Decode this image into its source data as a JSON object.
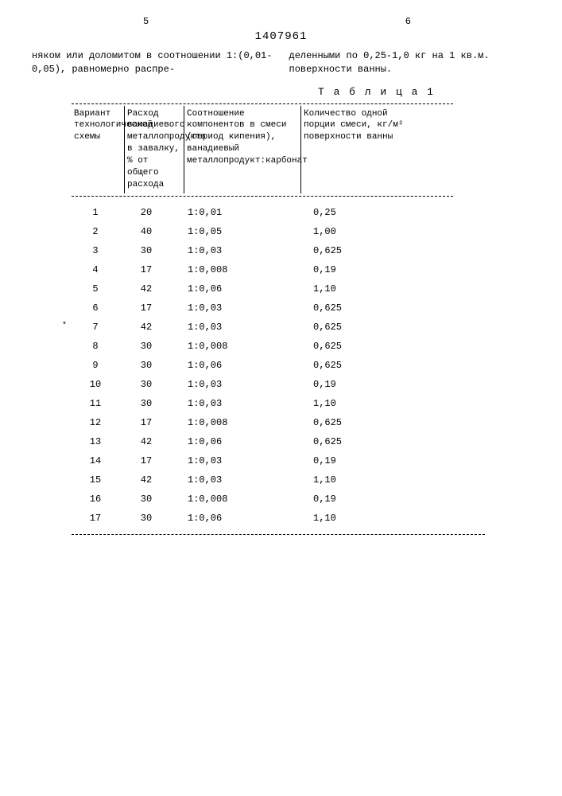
{
  "header": {
    "left_col_number": "5",
    "right_col_number": "6",
    "patent_number": "1407961"
  },
  "intro": {
    "left": "няком или доломитом в соотношении 1:(0,01-0,05), равномерно распре-",
    "right": "деленными по 0,25-1,0 кг на 1 кв.м. поверхности ванны."
  },
  "table": {
    "caption": "Т а б л и ц а  1",
    "columns": [
      "Вариант технологической схемы",
      "Расход ванадиевого металлопродукта в завалку, % от общего расхода",
      "Соотношение компонентов в смеси (период кипения), ванадиевый металлопродукт:карбонат",
      "Количество одной порции смеси, кг/м² поверхности ванны"
    ],
    "rows": [
      [
        "1",
        "20",
        "1:0,01",
        "0,25"
      ],
      [
        "2",
        "40",
        "1:0,05",
        "1,00"
      ],
      [
        "3",
        "30",
        "1:0,03",
        "0,625"
      ],
      [
        "4",
        "17",
        "1:0,008",
        "0,19"
      ],
      [
        "5",
        "42",
        "1:0,06",
        "1,10"
      ],
      [
        "6",
        "17",
        "1:0,03",
        "0,625"
      ],
      [
        "7",
        "42",
        "1:0,03",
        "0,625"
      ],
      [
        "8",
        "30",
        "1:0,008",
        "0,625"
      ],
      [
        "9",
        "30",
        "1:0,06",
        "0,625"
      ],
      [
        "10",
        "30",
        "1:0,03",
        "0,19"
      ],
      [
        "11",
        "30",
        "1:0,03",
        "1,10"
      ],
      [
        "12",
        "17",
        "1:0,008",
        "0,625"
      ],
      [
        "13",
        "42",
        "1:0,06",
        "0,625"
      ],
      [
        "14",
        "17",
        "1:0,03",
        "0,19"
      ],
      [
        "15",
        "42",
        "1:0,03",
        "1,10"
      ],
      [
        "16",
        "30",
        "1:0,008",
        "0,19"
      ],
      [
        "17",
        "30",
        "1:0,06",
        "1,10"
      ]
    ],
    "marked_row_index": 6
  },
  "styling": {
    "background_color": "#ffffff",
    "text_color": "#000000",
    "font_family": "Courier New",
    "body_fontsize": 12,
    "header_fontsize": 14,
    "table_header_fontsize": 11
  }
}
